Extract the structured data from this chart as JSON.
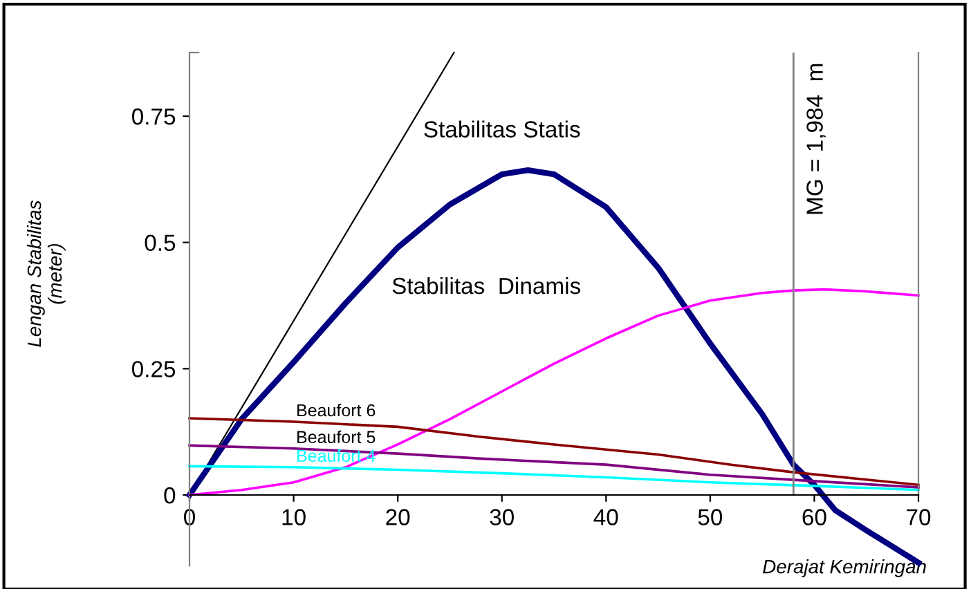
{
  "chart_data": {
    "type": "line",
    "xlabel": "Derajat Kemiringan",
    "ylabel": "Lengan Stabilitas\n(meter)",
    "xlim": [
      0,
      70
    ],
    "ylim": [
      -0.14,
      0.876
    ],
    "xticks": [
      0,
      10,
      20,
      30,
      40,
      50,
      60,
      70
    ],
    "yticks": [
      0,
      0.25,
      0.5,
      0.75
    ],
    "grid": false,
    "legend": false,
    "series": [
      {
        "color": "#000000",
        "x": [
          0,
          25.4
        ],
        "values": [
          0,
          0.876
        ]
      },
      {
        "color": "#000080",
        "x": [
          0,
          5,
          10,
          15,
          20,
          25,
          30,
          32.5,
          35,
          40,
          45,
          50,
          55,
          58,
          60,
          62,
          65,
          70
        ],
        "values": [
          0,
          0.15,
          0.263,
          0.38,
          0.49,
          0.575,
          0.635,
          0.643,
          0.635,
          0.57,
          0.45,
          0.3,
          0.16,
          0.06,
          0.02,
          -0.03,
          -0.07,
          -0.134
        ]
      },
      {
        "color": "#ff00ff",
        "x": [
          0,
          5,
          10,
          15,
          20,
          25,
          30,
          35,
          40,
          45,
          50,
          55,
          58,
          61,
          65,
          70
        ],
        "values": [
          0,
          0.01,
          0.025,
          0.055,
          0.1,
          0.15,
          0.205,
          0.26,
          0.31,
          0.355,
          0.385,
          0.4,
          0.405,
          0.407,
          0.403,
          0.395
        ]
      },
      {
        "name": "Beaufort 6",
        "color": "#8b0000",
        "x": [
          0,
          10,
          20,
          28,
          35,
          45,
          52,
          58,
          70
        ],
        "values": [
          0.152,
          0.145,
          0.135,
          0.115,
          0.1,
          0.08,
          0.06,
          0.045,
          0.02
        ]
      },
      {
        "name": "Beaufort 5",
        "color": "#800080",
        "x": [
          0,
          10,
          20,
          28,
          40,
          50,
          58,
          70
        ],
        "values": [
          0.098,
          0.092,
          0.082,
          0.072,
          0.06,
          0.04,
          0.03,
          0.015
        ]
      },
      {
        "name": "Beaufort 4",
        "color": "#00ffff",
        "x": [
          0,
          10,
          20,
          30,
          40,
          50,
          60,
          70
        ],
        "values": [
          0.057,
          0.055,
          0.05,
          0.043,
          0.035,
          0.025,
          0.018,
          0.01
        ]
      }
    ],
    "ref_lines": [
      {
        "axis": "x",
        "value": 58,
        "color": "#808080"
      }
    ],
    "annotations": [
      "Stabilitas Statis",
      "Stabilitas  Dinamis",
      "MG = 1,984  m"
    ]
  }
}
